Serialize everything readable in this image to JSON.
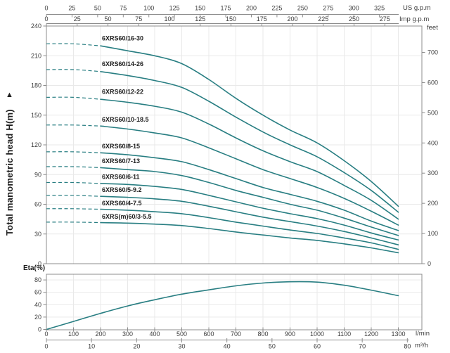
{
  "labels": {
    "y_axis_title": "Total manometric head H(m)",
    "y_axis_arrow": "▲"
  },
  "colors": {
    "curve": "#287e82",
    "grid": "#e9e9e9",
    "axis": "#8c8c8c",
    "tick_text": "#3c3c3c",
    "series_label": "#1f1f1f"
  },
  "chart_data": [
    {
      "id": "head_curves",
      "type": "line",
      "ylabel": "Total manometric head H(m)",
      "ylim": [
        0,
        240
      ],
      "yticks_m": [
        0,
        30,
        60,
        90,
        120,
        150,
        180,
        210,
        240
      ],
      "right_axis": {
        "unit": "feet",
        "ticks": [
          0,
          100,
          200,
          300,
          400,
          500,
          600,
          700
        ]
      },
      "top_axis_us": {
        "unit": "US g.p.m",
        "ticks": [
          0,
          25,
          50,
          75,
          100,
          125,
          150,
          175,
          200,
          225,
          250,
          275,
          300,
          325
        ]
      },
      "top_axis_imp": {
        "unit": "Imp g.p.m",
        "ticks": [
          0,
          25,
          50,
          75,
          100,
          125,
          150,
          175,
          200,
          225,
          250,
          275
        ]
      },
      "x_lmin": [
        0,
        100,
        200,
        300,
        400,
        500,
        600,
        700,
        800,
        900,
        1000,
        1100,
        1200,
        1300
      ],
      "dashed_until_lmin": 200,
      "grid": true,
      "series": [
        {
          "name": "6XRS60/16-30",
          "heads_m": [
            222,
            222,
            220,
            215,
            210,
            202,
            186,
            167,
            150,
            135,
            122,
            104,
            83,
            58
          ]
        },
        {
          "name": "6XRS60/14-26",
          "heads_m": [
            196,
            196,
            194,
            190,
            185,
            178,
            164,
            148,
            133,
            120,
            108,
            92,
            74,
            52
          ]
        },
        {
          "name": "6XRS60/12-22",
          "heads_m": [
            168,
            168,
            166,
            163,
            159,
            153,
            141,
            127,
            114,
            103,
            93,
            79,
            64,
            45
          ]
        },
        {
          "name": "6XRS60/10-18.5",
          "heads_m": [
            140,
            140,
            139,
            136,
            132,
            127,
            117,
            106,
            95,
            86,
            77,
            66,
            53,
            39
          ]
        },
        {
          "name": "6XRS60/8-15",
          "heads_m": [
            113,
            113,
            112,
            110,
            107,
            103,
            95,
            86,
            77,
            70,
            63,
            54,
            43,
            33.5
          ]
        },
        {
          "name": "6XRS60/7-13",
          "heads_m": [
            98,
            98,
            97,
            95,
            93,
            89,
            82,
            74,
            67,
            60,
            54,
            46,
            37,
            28.5
          ]
        },
        {
          "name": "6XRS60/6-11",
          "heads_m": [
            82,
            82,
            81,
            80,
            78,
            75,
            69,
            62.5,
            56,
            50.5,
            45.5,
            39,
            31,
            24
          ]
        },
        {
          "name": "6XRS60/5-9.2",
          "heads_m": [
            69,
            69,
            68,
            67,
            65.5,
            63,
            58,
            52.5,
            47,
            42.5,
            38,
            32.5,
            26,
            19
          ]
        },
        {
          "name": "6XRS60/4-7.5",
          "heads_m": [
            55.5,
            55.5,
            55,
            54,
            52.5,
            50.5,
            46.5,
            42,
            38,
            34,
            30.5,
            26,
            21,
            14.5
          ]
        },
        {
          "name": "6XRS(m)60/3-5.5",
          "heads_m": [
            42,
            42,
            41.5,
            41,
            40,
            38.5,
            35.5,
            32,
            29,
            26,
            23.5,
            20,
            16,
            11
          ]
        }
      ]
    },
    {
      "id": "efficiency",
      "type": "line",
      "ylabel": "Eta(%)",
      "ylim": [
        0,
        80
      ],
      "yticks_pct": [
        0,
        20,
        40,
        60,
        80
      ],
      "x_lmin": [
        0,
        100,
        200,
        300,
        400,
        500,
        600,
        700,
        800,
        900,
        1000,
        1100,
        1200,
        1300
      ],
      "x_axis_lmin": {
        "unit": "l/min",
        "ticks": [
          0,
          100,
          200,
          300,
          400,
          500,
          600,
          700,
          800,
          900,
          1000,
          1100,
          1200,
          1300
        ]
      },
      "x_axis_m3h": {
        "unit": "m³/h",
        "ticks": [
          0,
          10,
          20,
          30,
          40,
          50,
          60,
          70,
          80
        ]
      },
      "grid": true,
      "series": [
        {
          "name": "Eta",
          "values_pct": [
            0,
            13,
            26,
            38,
            48,
            57,
            64,
            70.5,
            75,
            77,
            76.5,
            71.5,
            63.5,
            54.5
          ]
        }
      ]
    }
  ]
}
